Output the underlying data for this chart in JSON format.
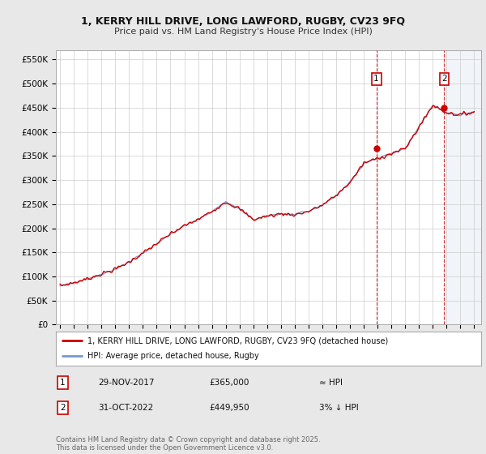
{
  "title_line1": "1, KERRY HILL DRIVE, LONG LAWFORD, RUGBY, CV23 9FQ",
  "title_line2": "Price paid vs. HM Land Registry's House Price Index (HPI)",
  "ylim": [
    0,
    570000
  ],
  "yticks": [
    0,
    50000,
    100000,
    150000,
    200000,
    250000,
    300000,
    350000,
    400000,
    450000,
    500000,
    550000
  ],
  "ytick_labels": [
    "£0",
    "£50K",
    "£100K",
    "£150K",
    "£200K",
    "£250K",
    "£300K",
    "£350K",
    "£400K",
    "£450K",
    "£500K",
    "£550K"
  ],
  "background_color": "#e8e8e8",
  "plot_bg_color": "#ffffff",
  "hpi_color": "#7799cc",
  "price_color": "#cc0000",
  "annotation1": {
    "label": "1",
    "date_str": "29-NOV-2017",
    "price": 365000,
    "x_year": 2017.91,
    "note": "≈ HPI"
  },
  "annotation2": {
    "label": "2",
    "date_str": "31-OCT-2022",
    "price": 449950,
    "x_year": 2022.83,
    "note": "3% ↓ HPI"
  },
  "legend_line1": "1, KERRY HILL DRIVE, LONG LAWFORD, RUGBY, CV23 9FQ (detached house)",
  "legend_line2": "HPI: Average price, detached house, Rugby",
  "footer": "Contains HM Land Registry data © Crown copyright and database right 2025.\nThis data is licensed under the Open Government Licence v3.0.",
  "xtick_years": [
    1995,
    1996,
    1997,
    1998,
    1999,
    2000,
    2001,
    2002,
    2003,
    2004,
    2005,
    2006,
    2007,
    2008,
    2009,
    2010,
    2011,
    2012,
    2013,
    2014,
    2015,
    2016,
    2017,
    2018,
    2019,
    2020,
    2021,
    2022,
    2023,
    2024,
    2025
  ],
  "key_years_hpi": [
    1995,
    1996,
    1997,
    1998,
    1999,
    2000,
    2001,
    2002,
    2003,
    2004,
    2005,
    2006,
    2007,
    2008,
    2009,
    2010,
    2011,
    2012,
    2013,
    2014,
    2015,
    2016,
    2017,
    2018,
    2019,
    2020,
    2021,
    2022,
    2023,
    2024,
    2025
  ],
  "key_vals_hpi": [
    80000,
    87000,
    95000,
    105000,
    115000,
    130000,
    148000,
    168000,
    188000,
    205000,
    218000,
    235000,
    255000,
    240000,
    218000,
    225000,
    230000,
    228000,
    235000,
    248000,
    268000,
    295000,
    335000,
    345000,
    355000,
    365000,
    410000,
    455000,
    440000,
    435000,
    442000
  ],
  "xlim_start": 1994.7,
  "xlim_end": 2025.5
}
